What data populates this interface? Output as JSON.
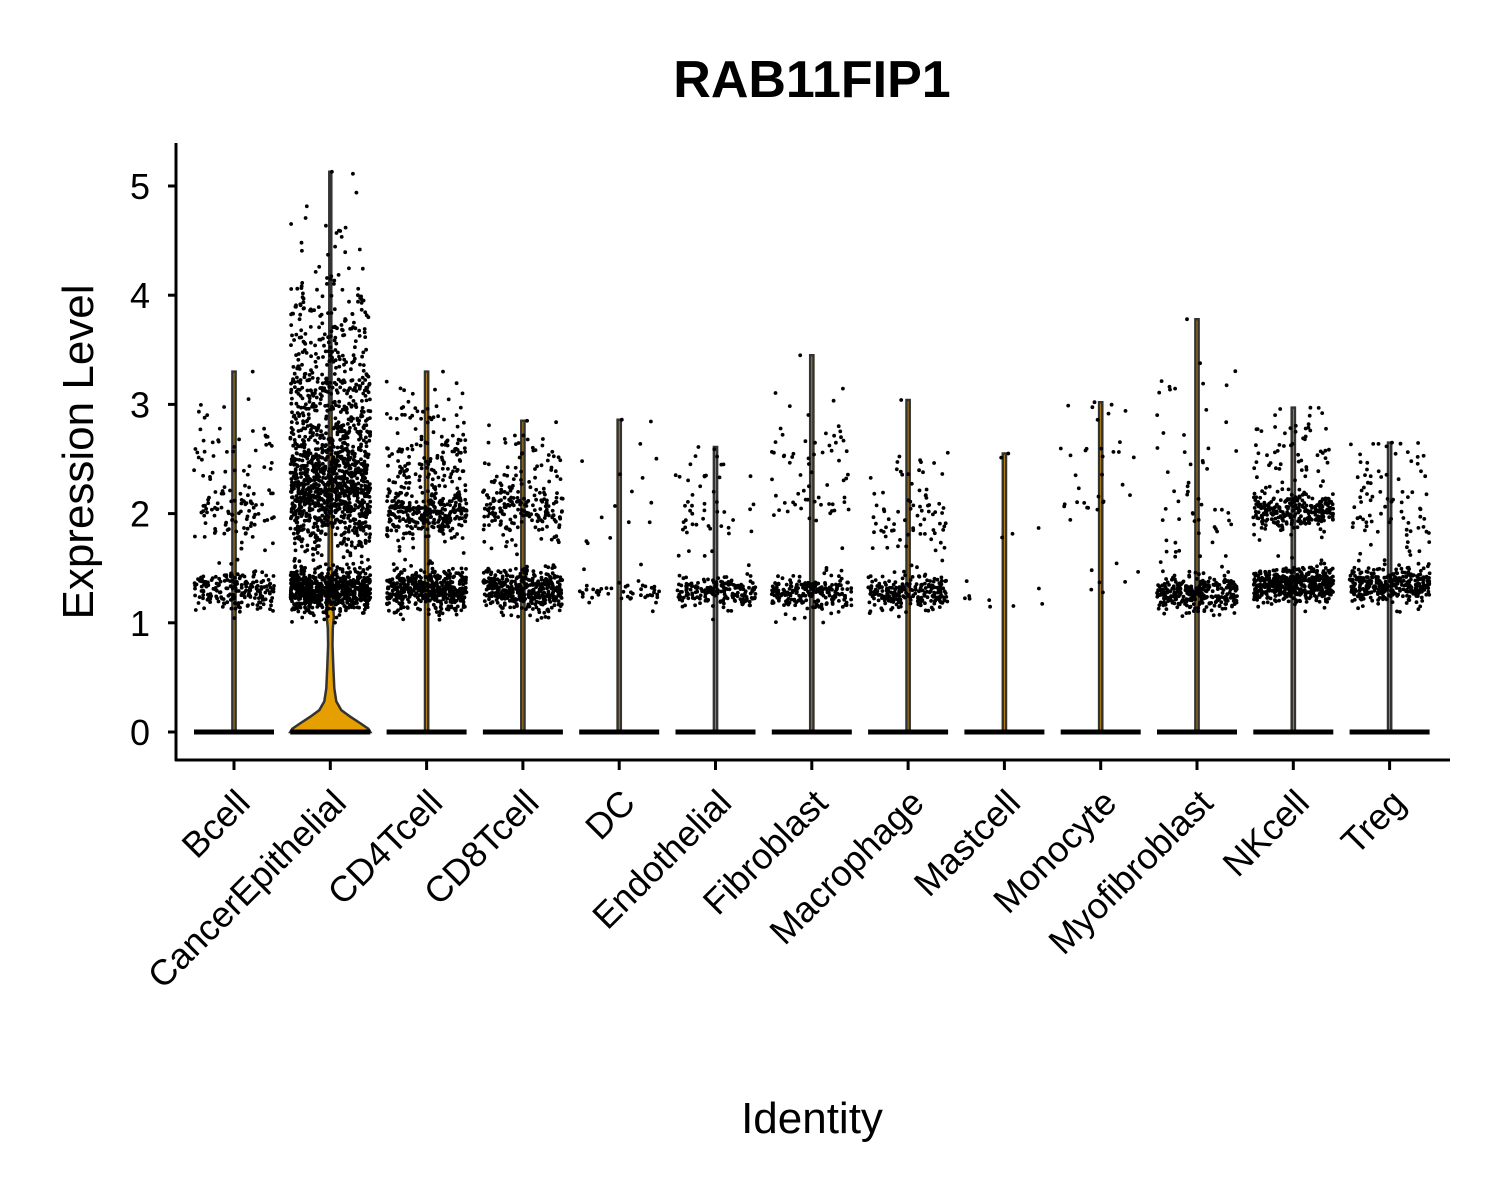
{
  "chart_data": {
    "type": "violin",
    "title": "RAB11FIP1",
    "xlabel": "Identity",
    "ylabel": "Expression Level",
    "ylim": [
      -0.25,
      5.4
    ],
    "yticks": [
      0,
      1,
      2,
      3,
      4,
      5
    ],
    "ytick_labels": [
      "0",
      "1",
      "2",
      "3",
      "4",
      "5"
    ],
    "grid": false,
    "legend": "none",
    "violin_fill": "#E69F00",
    "categories": [
      "Bcell",
      "CancerEpithelial",
      "CD4Tcell",
      "CD8Tcell",
      "DC",
      "Endothelial",
      "Fibroblast",
      "Macrophage",
      "Mastcell",
      "Monocyte",
      "Myofibroblast",
      "NKcell",
      "Treg"
    ],
    "max_values": [
      3.3,
      5.13,
      3.3,
      2.85,
      2.86,
      2.61,
      3.45,
      3.04,
      2.55,
      3.02,
      3.78,
      2.97,
      2.65
    ],
    "clusters": [
      [
        [
          1.3,
          0.1,
          200
        ],
        [
          2.0,
          0.13,
          80
        ],
        [
          2.45,
          0.18,
          40
        ],
        [
          2.9,
          0.15,
          12
        ]
      ],
      [
        [
          1.3,
          0.1,
          700
        ],
        [
          2.2,
          0.3,
          900
        ],
        [
          3.0,
          0.35,
          350
        ],
        [
          3.7,
          0.35,
          120
        ],
        [
          4.4,
          0.3,
          25
        ]
      ],
      [
        [
          1.3,
          0.1,
          450
        ],
        [
          2.0,
          0.12,
          280
        ],
        [
          2.45,
          0.2,
          120
        ],
        [
          2.85,
          0.15,
          40
        ]
      ],
      [
        [
          1.3,
          0.1,
          400
        ],
        [
          2.0,
          0.12,
          160
        ],
        [
          2.35,
          0.18,
          50
        ],
        [
          2.65,
          0.12,
          15
        ]
      ],
      [
        [
          1.27,
          0.05,
          45
        ],
        [
          2.0,
          0.4,
          14
        ],
        [
          2.6,
          0.2,
          4
        ]
      ],
      [
        [
          1.27,
          0.07,
          180
        ],
        [
          1.9,
          0.3,
          45
        ],
        [
          2.4,
          0.15,
          8
        ]
      ],
      [
        [
          1.27,
          0.08,
          220
        ],
        [
          2.1,
          0.2,
          35
        ],
        [
          2.6,
          0.15,
          25
        ],
        [
          3.1,
          0.2,
          6
        ]
      ],
      [
        [
          1.27,
          0.08,
          230
        ],
        [
          1.9,
          0.2,
          60
        ],
        [
          2.4,
          0.2,
          20
        ]
      ],
      [
        [
          1.27,
          0.1,
          9
        ],
        [
          2.0,
          0.1,
          3
        ],
        [
          2.5,
          0.05,
          1
        ]
      ],
      [
        [
          1.35,
          0.1,
          7
        ],
        [
          2.1,
          0.15,
          16
        ],
        [
          2.55,
          0.05,
          10
        ],
        [
          2.95,
          0.1,
          6
        ]
      ],
      [
        [
          1.27,
          0.08,
          300
        ],
        [
          1.9,
          0.2,
          30
        ],
        [
          2.5,
          0.25,
          20
        ],
        [
          3.3,
          0.2,
          8
        ]
      ],
      [
        [
          1.35,
          0.08,
          450
        ],
        [
          2.03,
          0.08,
          250
        ],
        [
          2.4,
          0.2,
          60
        ],
        [
          2.8,
          0.15,
          15
        ]
      ],
      [
        [
          1.35,
          0.08,
          320
        ],
        [
          2.0,
          0.2,
          60
        ],
        [
          2.45,
          0.15,
          25
        ]
      ]
    ]
  }
}
